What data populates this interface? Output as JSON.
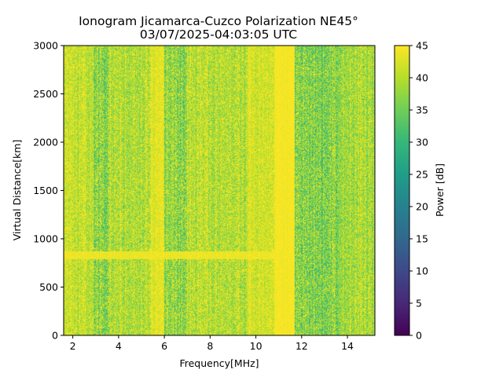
{
  "chart_data": {
    "type": "heatmap",
    "title_line1": "Ionogram Jicamarca-Cuzco Polarization NE45°",
    "title_line2": "03/07/2025-04:03:05 UTC",
    "xlabel": "Frequency[MHz]",
    "ylabel": "Virtual Distance[km]",
    "xlim": [
      1.6,
      15.2
    ],
    "ylim": [
      0,
      3000
    ],
    "xticks": [
      2,
      4,
      6,
      8,
      10,
      12,
      14
    ],
    "yticks": [
      0,
      500,
      1000,
      1500,
      2000,
      2500,
      3000
    ],
    "colorbar": {
      "label": "Power [dB]",
      "colormap": "viridis",
      "range": [
        0,
        45
      ],
      "ticks": [
        0,
        5,
        10,
        15,
        20,
        25,
        30,
        35,
        40,
        45
      ]
    },
    "band_structure": [
      {
        "from_mhz": 1.6,
        "to_mhz": 2.9,
        "mean_db": 41,
        "spread_db": 5
      },
      {
        "from_mhz": 2.9,
        "to_mhz": 3.6,
        "mean_db": 37,
        "spread_db": 8
      },
      {
        "from_mhz": 3.6,
        "to_mhz": 5.4,
        "mean_db": 40,
        "spread_db": 6
      },
      {
        "from_mhz": 5.4,
        "to_mhz": 6.0,
        "mean_db": 43,
        "spread_db": 3
      },
      {
        "from_mhz": 6.0,
        "to_mhz": 6.4,
        "mean_db": 38,
        "spread_db": 7
      },
      {
        "from_mhz": 6.4,
        "to_mhz": 7.0,
        "mean_db": 37,
        "spread_db": 8
      },
      {
        "from_mhz": 7.0,
        "to_mhz": 9.6,
        "mean_db": 40,
        "spread_db": 6
      },
      {
        "from_mhz": 9.6,
        "to_mhz": 10.8,
        "mean_db": 42,
        "spread_db": 4
      },
      {
        "from_mhz": 10.8,
        "to_mhz": 11.7,
        "mean_db": 44.5,
        "spread_db": 1
      },
      {
        "from_mhz": 11.7,
        "to_mhz": 13.6,
        "mean_db": 36,
        "spread_db": 8
      },
      {
        "from_mhz": 13.6,
        "to_mhz": 15.2,
        "mean_db": 39,
        "spread_db": 6
      }
    ],
    "echo_traces": [
      {
        "from_mhz": 1.6,
        "to_mhz": 11.0,
        "distance_km": 830,
        "power_db": 44.5
      }
    ],
    "colors": {
      "background": "#ffffff",
      "axis": "#000000",
      "viridis_stops": [
        "#440154",
        "#482878",
        "#3e4989",
        "#31688e",
        "#26828e",
        "#1f9e89",
        "#35b779",
        "#6ece58",
        "#b5de2b",
        "#fde725"
      ]
    }
  }
}
